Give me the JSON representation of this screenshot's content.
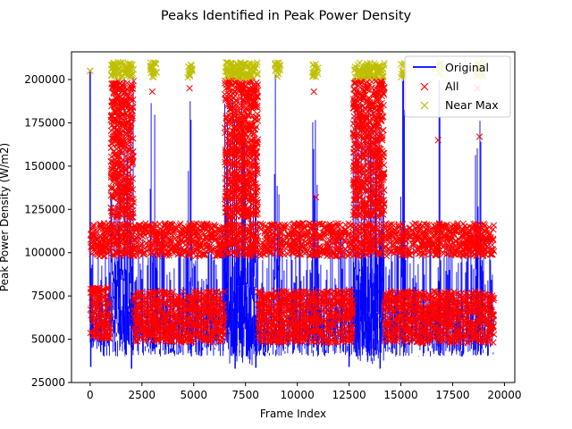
{
  "chart_data": {
    "type": "line",
    "title": "Peaks Identified in Peak Power Density",
    "xlabel": "Frame Index",
    "ylabel": "Peak Power Density (W/m2)",
    "xlim": [
      -900,
      20500
    ],
    "ylim": [
      25000,
      216000
    ],
    "xticks": [
      0,
      2500,
      5000,
      7500,
      10000,
      12500,
      15000,
      17500,
      20000
    ],
    "xtick_labels": [
      "0",
      "2500",
      "5000",
      "7500",
      "10000",
      "12500",
      "15000",
      "17500",
      "20000"
    ],
    "yticks": [
      25000,
      50000,
      75000,
      100000,
      125000,
      150000,
      175000,
      200000
    ],
    "ytick_labels": [
      "25000",
      "50000",
      "75000",
      "100000",
      "125000",
      "150000",
      "175000",
      "200000"
    ],
    "grid": false,
    "legend_position": "top-right",
    "series": [
      {
        "name": "Original",
        "style": "line",
        "color": "#0000ff",
        "segments": [
          {
            "x0": 0,
            "x1": 19500,
            "ymin": 40000,
            "ymax": 115000
          },
          {
            "x0": 1000,
            "x1": 2100,
            "ymin": 40000,
            "ymax": 205000
          },
          {
            "x0": 2900,
            "x1": 3250,
            "ymin": 40000,
            "ymax": 205000
          },
          {
            "x0": 4700,
            "x1": 4950,
            "ymin": 40000,
            "ymax": 205000
          },
          {
            "x0": 6500,
            "x1": 8100,
            "ymin": 35000,
            "ymax": 205000
          },
          {
            "x0": 8900,
            "x1": 9200,
            "ymin": 40000,
            "ymax": 205000
          },
          {
            "x0": 10700,
            "x1": 11000,
            "ymin": 40000,
            "ymax": 205000
          },
          {
            "x0": 12700,
            "x1": 14200,
            "ymin": 35000,
            "ymax": 205000
          },
          {
            "x0": 15000,
            "x1": 15200,
            "ymin": 40000,
            "ymax": 205000
          },
          {
            "x0": 16800,
            "x1": 16950,
            "ymin": 40000,
            "ymax": 205000
          },
          {
            "x0": 18600,
            "x1": 19000,
            "ymin": 40000,
            "ymax": 205000
          }
        ],
        "spikes": [
          {
            "x": 0,
            "y": 205000
          },
          {
            "x": 30,
            "y": 34000
          },
          {
            "x": 7000,
            "y": 33000
          },
          {
            "x": 8000,
            "y": 33500
          },
          {
            "x": 14000,
            "y": 33000
          },
          {
            "x": 12500,
            "y": 34000
          },
          {
            "x": 2000,
            "y": 33000
          }
        ]
      },
      {
        "name": "All",
        "style": "marker-x",
        "color": "#ff0000",
        "bands": [
          {
            "x0": 0,
            "x1": 19500,
            "ymin": 98000,
            "ymax": 117000
          },
          {
            "x0": 0,
            "x1": 1000,
            "ymin": 50000,
            "ymax": 80000
          },
          {
            "x0": 2100,
            "x1": 6500,
            "ymin": 48000,
            "ymax": 78000
          },
          {
            "x0": 8100,
            "x1": 12700,
            "ymin": 48000,
            "ymax": 78000
          },
          {
            "x0": 14200,
            "x1": 19500,
            "ymin": 48000,
            "ymax": 78000
          },
          {
            "x0": 1000,
            "x1": 2100,
            "ymin": 120000,
            "ymax": 200000
          },
          {
            "x0": 6500,
            "x1": 8100,
            "ymin": 120000,
            "ymax": 200000
          },
          {
            "x0": 12700,
            "x1": 14200,
            "ymin": 120000,
            "ymax": 200000
          }
        ],
        "extra_points": [
          {
            "x": 0,
            "y": 205000
          },
          {
            "x": 1100,
            "y": 195000
          },
          {
            "x": 1400,
            "y": 185000
          },
          {
            "x": 2000,
            "y": 177000
          },
          {
            "x": 3000,
            "y": 193000
          },
          {
            "x": 4800,
            "y": 195000
          },
          {
            "x": 7400,
            "y": 195000
          },
          {
            "x": 8000,
            "y": 190000
          },
          {
            "x": 10800,
            "y": 193000
          },
          {
            "x": 10900,
            "y": 132000
          },
          {
            "x": 12800,
            "y": 198000
          },
          {
            "x": 13400,
            "y": 160000
          },
          {
            "x": 14100,
            "y": 178000
          },
          {
            "x": 14000,
            "y": 150000
          },
          {
            "x": 16800,
            "y": 165000
          },
          {
            "x": 18700,
            "y": 195000
          },
          {
            "x": 18800,
            "y": 167000
          },
          {
            "x": 7200,
            "y": 165000
          },
          {
            "x": 7500,
            "y": 165000
          },
          {
            "x": 7800,
            "y": 165000
          },
          {
            "x": 13500,
            "y": 165000
          },
          {
            "x": 13800,
            "y": 165000
          },
          {
            "x": 14100,
            "y": 165000
          },
          {
            "x": 1200,
            "y": 165000
          },
          {
            "x": 1600,
            "y": 165000
          },
          {
            "x": 1900,
            "y": 165000
          }
        ]
      },
      {
        "name": "Near Max",
        "style": "marker-x",
        "color": "#bfbf00",
        "bands": [
          {
            "x0": 1000,
            "x1": 2100,
            "ymin": 201000,
            "ymax": 210000
          },
          {
            "x0": 2900,
            "x1": 3250,
            "ymin": 201000,
            "ymax": 210000
          },
          {
            "x0": 4700,
            "x1": 4950,
            "ymin": 201000,
            "ymax": 210000
          },
          {
            "x0": 6500,
            "x1": 8100,
            "ymin": 201000,
            "ymax": 210000
          },
          {
            "x0": 8900,
            "x1": 9200,
            "ymin": 201000,
            "ymax": 210000
          },
          {
            "x0": 10700,
            "x1": 11000,
            "ymin": 201000,
            "ymax": 210000
          },
          {
            "x0": 12700,
            "x1": 14200,
            "ymin": 201000,
            "ymax": 210000
          },
          {
            "x0": 15000,
            "x1": 15200,
            "ymin": 201000,
            "ymax": 210000
          },
          {
            "x0": 16800,
            "x1": 16950,
            "ymin": 201000,
            "ymax": 210000
          },
          {
            "x0": 18600,
            "x1": 19000,
            "ymin": 201000,
            "ymax": 210000
          }
        ],
        "extra_points": [
          {
            "x": 0,
            "y": 205000
          }
        ]
      }
    ]
  }
}
